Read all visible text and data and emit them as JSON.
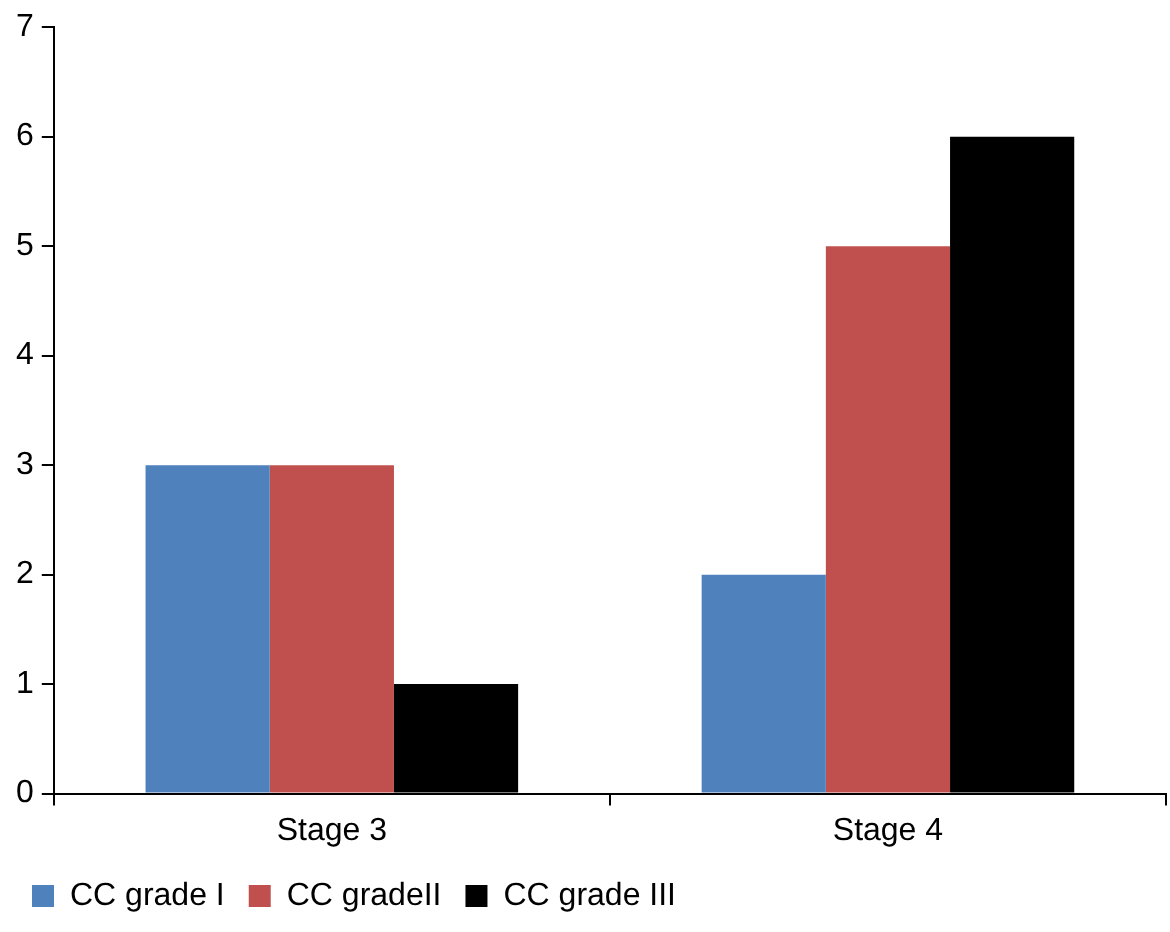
{
  "chart_data": {
    "type": "bar",
    "categories": [
      "Stage 3",
      "Stage 4"
    ],
    "series": [
      {
        "name": "CC grade I",
        "color": "#4f81bd",
        "values": [
          3,
          2
        ]
      },
      {
        "name": "CC gradeII",
        "color": "#c0504d",
        "values": [
          3,
          5
        ]
      },
      {
        "name": "CC grade III",
        "color": "#000000",
        "values": [
          1,
          6
        ]
      }
    ],
    "ylim": [
      0,
      7
    ],
    "yticks": [
      0,
      1,
      2,
      3,
      4,
      5,
      6,
      7
    ],
    "legend": "bottom left"
  }
}
